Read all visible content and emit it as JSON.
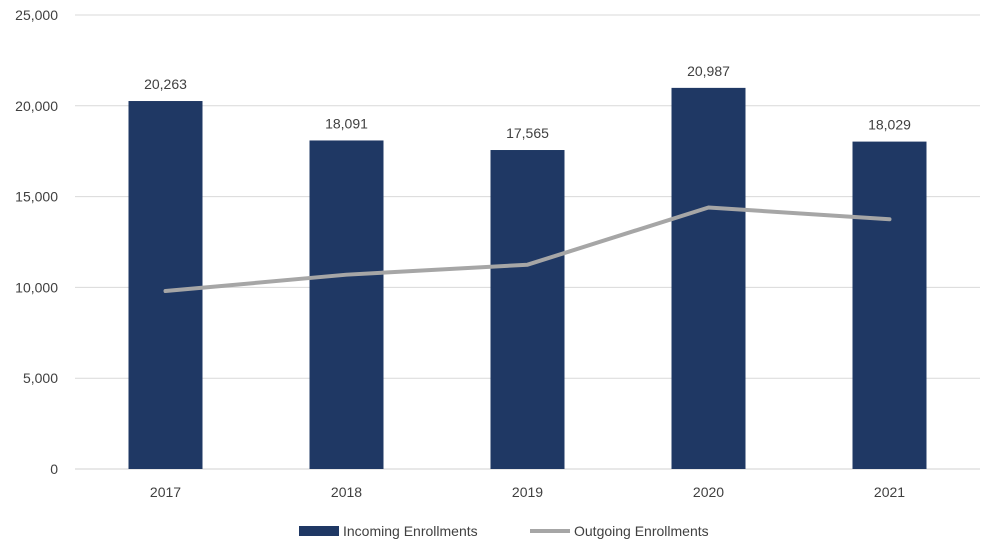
{
  "chart_data": {
    "type": "bar",
    "categories": [
      "2017",
      "2018",
      "2019",
      "2020",
      "2021"
    ],
    "series": [
      {
        "name": "Incoming Enrollments",
        "kind": "bar",
        "color": "#1f3864",
        "values": [
          20263,
          18091,
          17565,
          20987,
          18029
        ],
        "labels": [
          "20,263",
          "18,091",
          "17,565",
          "20,987",
          "18,029"
        ]
      },
      {
        "name": "Outgoing Enrollments",
        "kind": "line",
        "color": "#a6a6a6",
        "values": [
          9800,
          10700,
          11250,
          14400,
          13750
        ]
      }
    ],
    "ylim": [
      0,
      25000
    ],
    "yticks": [
      0,
      5000,
      10000,
      15000,
      20000,
      25000
    ],
    "ytick_labels": [
      "0",
      "5,000",
      "10,000",
      "15,000",
      "20,000",
      "25,000"
    ],
    "grid": true,
    "legend": "bottom",
    "title": "",
    "xlabel": "",
    "ylabel": ""
  }
}
